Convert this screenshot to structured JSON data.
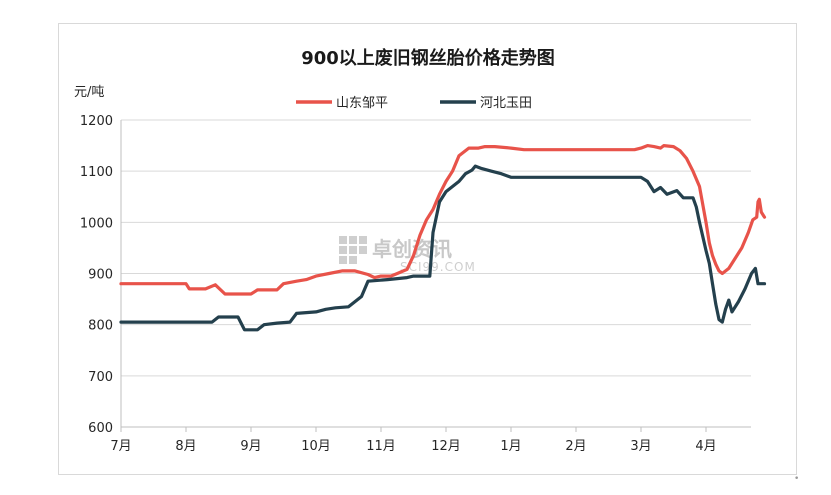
{
  "chart_data": {
    "type": "line",
    "title": "900以上废旧钢丝胎价格走势图",
    "ylabel": "元/吨",
    "xlabel": "",
    "ylim": [
      600,
      1200
    ],
    "yticks": [
      600,
      700,
      800,
      900,
      1000,
      1100,
      1200
    ],
    "categories": [
      "7月",
      "8月",
      "9月",
      "10月",
      "11月",
      "12月",
      "1月",
      "2月",
      "3月",
      "4月"
    ],
    "grid": "horizontal",
    "legend_position": "top",
    "watermark": {
      "text": "卓创资讯",
      "sub": "SCI99.COM"
    },
    "series": [
      {
        "name": "山东邹平",
        "color": "#e8534a",
        "points": [
          [
            0.0,
            880
          ],
          [
            0.5,
            880
          ],
          [
            0.8,
            880
          ],
          [
            1.0,
            880
          ],
          [
            1.05,
            870
          ],
          [
            1.3,
            870
          ],
          [
            1.45,
            878
          ],
          [
            1.6,
            860
          ],
          [
            1.8,
            860
          ],
          [
            2.0,
            860
          ],
          [
            2.1,
            868
          ],
          [
            2.4,
            868
          ],
          [
            2.5,
            880
          ],
          [
            2.7,
            885
          ],
          [
            2.85,
            888
          ],
          [
            3.0,
            895
          ],
          [
            3.2,
            900
          ],
          [
            3.4,
            905
          ],
          [
            3.6,
            905
          ],
          [
            3.8,
            898
          ],
          [
            3.9,
            892
          ],
          [
            4.0,
            895
          ],
          [
            4.15,
            895
          ],
          [
            4.25,
            900
          ],
          [
            4.4,
            908
          ],
          [
            4.5,
            935
          ],
          [
            4.6,
            975
          ],
          [
            4.7,
            1005
          ],
          [
            4.8,
            1025
          ],
          [
            4.9,
            1055
          ],
          [
            5.0,
            1080
          ],
          [
            5.1,
            1100
          ],
          [
            5.2,
            1130
          ],
          [
            5.35,
            1145
          ],
          [
            5.5,
            1145
          ],
          [
            5.6,
            1148
          ],
          [
            5.75,
            1148
          ],
          [
            6.0,
            1145
          ],
          [
            6.2,
            1142
          ],
          [
            6.5,
            1142
          ],
          [
            7.0,
            1142
          ],
          [
            7.5,
            1142
          ],
          [
            7.9,
            1142
          ],
          [
            8.0,
            1145
          ],
          [
            8.1,
            1150
          ],
          [
            8.2,
            1148
          ],
          [
            8.3,
            1145
          ],
          [
            8.35,
            1150
          ],
          [
            8.5,
            1148
          ],
          [
            8.6,
            1140
          ],
          [
            8.7,
            1125
          ],
          [
            8.8,
            1100
          ],
          [
            8.9,
            1070
          ],
          [
            9.0,
            1000
          ],
          [
            9.05,
            960
          ],
          [
            9.1,
            935
          ],
          [
            9.15,
            918
          ],
          [
            9.2,
            905
          ],
          [
            9.25,
            900
          ],
          [
            9.35,
            910
          ],
          [
            9.45,
            930
          ],
          [
            9.55,
            950
          ],
          [
            9.65,
            980
          ],
          [
            9.72,
            1005
          ],
          [
            9.78,
            1010
          ],
          [
            9.8,
            1040
          ],
          [
            9.82,
            1045
          ],
          [
            9.85,
            1020
          ],
          [
            9.9,
            1010
          ]
        ]
      },
      {
        "name": "河北玉田",
        "color": "#24404d",
        "points": [
          [
            0.0,
            805
          ],
          [
            0.5,
            805
          ],
          [
            1.0,
            805
          ],
          [
            1.4,
            805
          ],
          [
            1.5,
            815
          ],
          [
            1.8,
            815
          ],
          [
            1.9,
            790
          ],
          [
            2.1,
            790
          ],
          [
            2.2,
            800
          ],
          [
            2.4,
            803
          ],
          [
            2.6,
            805
          ],
          [
            2.7,
            822
          ],
          [
            3.0,
            825
          ],
          [
            3.15,
            830
          ],
          [
            3.3,
            833
          ],
          [
            3.5,
            835
          ],
          [
            3.7,
            855
          ],
          [
            3.8,
            885
          ],
          [
            4.1,
            888
          ],
          [
            4.4,
            892
          ],
          [
            4.5,
            895
          ],
          [
            4.75,
            895
          ],
          [
            4.8,
            980
          ],
          [
            4.9,
            1040
          ],
          [
            5.0,
            1060
          ],
          [
            5.1,
            1070
          ],
          [
            5.2,
            1080
          ],
          [
            5.3,
            1095
          ],
          [
            5.4,
            1102
          ],
          [
            5.45,
            1110
          ],
          [
            5.55,
            1105
          ],
          [
            5.7,
            1100
          ],
          [
            5.85,
            1095
          ],
          [
            6.0,
            1088
          ],
          [
            6.2,
            1088
          ],
          [
            6.5,
            1088
          ],
          [
            7.0,
            1088
          ],
          [
            7.5,
            1088
          ],
          [
            8.0,
            1088
          ],
          [
            8.1,
            1080
          ],
          [
            8.2,
            1060
          ],
          [
            8.3,
            1068
          ],
          [
            8.4,
            1055
          ],
          [
            8.55,
            1062
          ],
          [
            8.65,
            1048
          ],
          [
            8.8,
            1048
          ],
          [
            8.85,
            1030
          ],
          [
            8.9,
            1000
          ],
          [
            9.0,
            945
          ],
          [
            9.05,
            920
          ],
          [
            9.1,
            880
          ],
          [
            9.15,
            840
          ],
          [
            9.2,
            810
          ],
          [
            9.25,
            805
          ],
          [
            9.3,
            830
          ],
          [
            9.35,
            848
          ],
          [
            9.4,
            825
          ],
          [
            9.5,
            845
          ],
          [
            9.6,
            870
          ],
          [
            9.7,
            900
          ],
          [
            9.76,
            910
          ],
          [
            9.8,
            880
          ],
          [
            9.9,
            880
          ]
        ]
      }
    ]
  }
}
